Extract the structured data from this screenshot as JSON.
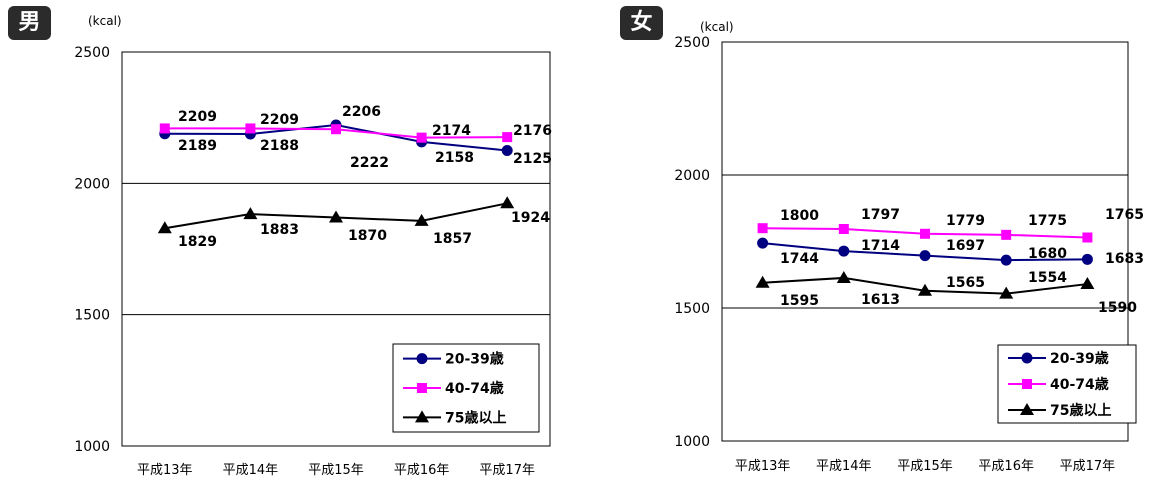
{
  "chart_data": [
    {
      "type": "line",
      "title": "男",
      "unit": "(kcal)",
      "categories": [
        "平成13年",
        "平成14年",
        "平成15年",
        "平成16年",
        "平成17年"
      ],
      "ylim": [
        1000,
        2500
      ],
      "yticks": [
        1000,
        1500,
        2000,
        2500
      ],
      "legend_position": "bottom-right",
      "grid": true,
      "series": [
        {
          "name": "20-39歳",
          "values": [
            2189,
            2188,
            2222,
            2158,
            2125
          ],
          "color": "#000080",
          "marker": "circle"
        },
        {
          "name": "40-74歳",
          "values": [
            2209,
            2209,
            2206,
            2174,
            2176
          ],
          "color": "#ff00ff",
          "marker": "square"
        },
        {
          "name": "75歳以上",
          "values": [
            1829,
            1883,
            1870,
            1857,
            1924
          ],
          "color": "#000000",
          "marker": "triangle"
        }
      ]
    },
    {
      "type": "line",
      "title": "女",
      "unit": "(kcal)",
      "categories": [
        "平成13年",
        "平成14年",
        "平成15年",
        "平成16年",
        "平成17年"
      ],
      "ylim": [
        1000,
        2500
      ],
      "yticks": [
        1000,
        1500,
        2000,
        2500
      ],
      "legend_position": "bottom-right",
      "grid": true,
      "series": [
        {
          "name": "20-39歳",
          "values": [
            1744,
            1714,
            1697,
            1680,
            1683
          ],
          "color": "#000080",
          "marker": "circle"
        },
        {
          "name": "40-74歳",
          "values": [
            1800,
            1797,
            1779,
            1775,
            1765
          ],
          "color": "#ff00ff",
          "marker": "square"
        },
        {
          "name": "75歳以上",
          "values": [
            1595,
            1613,
            1565,
            1554,
            1590
          ],
          "color": "#000000",
          "marker": "triangle"
        }
      ]
    }
  ]
}
